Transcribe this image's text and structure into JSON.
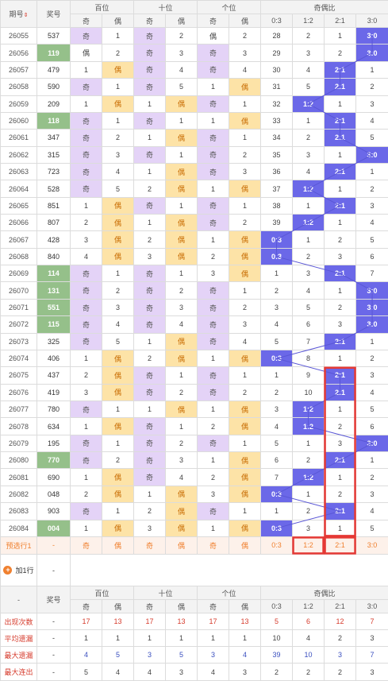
{
  "header": {
    "period": "期号",
    "prize": "奖号",
    "bai": "百位",
    "shi": "十位",
    "ge": "个位",
    "ratio": "奇偶比",
    "qi": "奇",
    "ou": "偶",
    "sort_icon": "sort-arrows-icon",
    "ratios": [
      "0:3",
      "1:2",
      "2:1",
      "3:0"
    ]
  },
  "rows": [
    {
      "p": "26055",
      "n": "537",
      "g": false,
      "b": "奇",
      "bm": "1",
      "s": "奇",
      "sm": "2",
      "e": "偶",
      "em": "2",
      "ratio": "3:0",
      "miss": [
        28,
        2,
        1
      ]
    },
    {
      "p": "26056",
      "n": "119",
      "g": true,
      "b": "偶",
      "bm": "2",
      "s": "奇",
      "sm": "3",
      "e": "奇",
      "em": "3",
      "ratio": "3:0",
      "miss": [
        29,
        3,
        2
      ]
    },
    {
      "p": "26057",
      "n": "479",
      "g": false,
      "b": "1",
      "bm": "偶",
      "s": "奇",
      "sm": "4",
      "e": "奇",
      "em": "4",
      "ratio": "2:1",
      "miss": [
        30,
        4,
        null,
        1
      ]
    },
    {
      "p": "26058",
      "n": "590",
      "g": false,
      "b": "奇",
      "bm": "1",
      "s": "奇",
      "sm": "5",
      "e": "1",
      "em": "偶",
      "ratio": "2:1",
      "miss": [
        31,
        5,
        null,
        2
      ]
    },
    {
      "p": "26059",
      "n": "209",
      "g": false,
      "b": "1",
      "bm": "偶",
      "s": "1",
      "sm": "偶",
      "e": "奇",
      "em": "1",
      "ratio": "1:2",
      "miss": [
        32,
        null,
        1,
        3
      ]
    },
    {
      "p": "26060",
      "n": "118",
      "g": true,
      "b": "奇",
      "bm": "1",
      "s": "奇",
      "sm": "1",
      "e": "1",
      "em": "偶",
      "ratio": "2:1",
      "miss": [
        33,
        1,
        null,
        4
      ]
    },
    {
      "p": "26061",
      "n": "347",
      "g": false,
      "b": "奇",
      "bm": "2",
      "s": "1",
      "sm": "偶",
      "e": "奇",
      "em": "1",
      "ratio": "2:1",
      "miss": [
        34,
        2,
        null,
        5
      ]
    },
    {
      "p": "26062",
      "n": "315",
      "g": false,
      "b": "奇",
      "bm": "3",
      "s": "奇",
      "sm": "1",
      "e": "奇",
      "em": "2",
      "ratio": "3:0",
      "miss": [
        35,
        3,
        1
      ]
    },
    {
      "p": "26063",
      "n": "723",
      "g": false,
      "b": "奇",
      "bm": "4",
      "s": "1",
      "sm": "偶",
      "e": "奇",
      "em": "3",
      "ratio": "2:1",
      "miss": [
        36,
        4,
        null,
        1
      ]
    },
    {
      "p": "26064",
      "n": "528",
      "g": false,
      "b": "奇",
      "bm": "5",
      "s": "2",
      "sm": "偶",
      "e": "1",
      "em": "偶",
      "ratio": "1:2",
      "miss": [
        37,
        null,
        1,
        2
      ]
    },
    {
      "p": "26065",
      "n": "851",
      "g": false,
      "b": "1",
      "bm": "偶",
      "s": "奇",
      "sm": "1",
      "e": "奇",
      "em": "1",
      "ratio": "2:1",
      "miss": [
        38,
        1,
        null,
        3
      ]
    },
    {
      "p": "26066",
      "n": "807",
      "g": false,
      "b": "2",
      "bm": "偶",
      "s": "1",
      "sm": "偶",
      "e": "奇",
      "em": "2",
      "ratio": "1:2",
      "miss": [
        39,
        null,
        1,
        4
      ]
    },
    {
      "p": "26067",
      "n": "428",
      "g": false,
      "b": "3",
      "bm": "偶",
      "s": "2",
      "sm": "偶",
      "e": "1",
      "em": "偶",
      "ratio": "0:3",
      "miss": [
        null,
        1,
        2,
        5
      ]
    },
    {
      "p": "26068",
      "n": "840",
      "g": false,
      "b": "4",
      "bm": "偶",
      "s": "3",
      "sm": "偶",
      "e": "2",
      "em": "偶",
      "ratio": "0:3",
      "miss": [
        null,
        2,
        3,
        6
      ]
    },
    {
      "p": "26069",
      "n": "114",
      "g": true,
      "b": "奇",
      "bm": "1",
      "s": "奇",
      "sm": "1",
      "e": "3",
      "em": "偶",
      "ratio": "2:1",
      "miss": [
        1,
        3,
        null,
        7
      ]
    },
    {
      "p": "26070",
      "n": "131",
      "g": true,
      "b": "奇",
      "bm": "2",
      "s": "奇",
      "sm": "2",
      "e": "奇",
      "em": "1",
      "ratio": "3:0",
      "miss": [
        2,
        4,
        1
      ]
    },
    {
      "p": "26071",
      "n": "551",
      "g": true,
      "b": "奇",
      "bm": "3",
      "s": "奇",
      "sm": "3",
      "e": "奇",
      "em": "2",
      "ratio": "3:0",
      "miss": [
        3,
        5,
        2
      ]
    },
    {
      "p": "26072",
      "n": "115",
      "g": true,
      "b": "奇",
      "bm": "4",
      "s": "奇",
      "sm": "4",
      "e": "奇",
      "em": "3",
      "ratio": "3:0",
      "miss": [
        4,
        6,
        3
      ]
    },
    {
      "p": "26073",
      "n": "325",
      "g": false,
      "b": "奇",
      "bm": "5",
      "s": "1",
      "sm": "偶",
      "e": "奇",
      "em": "4",
      "ratio": "2:1",
      "miss": [
        5,
        7,
        null,
        1
      ]
    },
    {
      "p": "26074",
      "n": "406",
      "g": false,
      "b": "1",
      "bm": "偶",
      "s": "2",
      "sm": "偶",
      "e": "1",
      "em": "偶",
      "ratio": "0:3",
      "miss": [
        null,
        8,
        1,
        2
      ]
    },
    {
      "p": "26075",
      "n": "437",
      "g": false,
      "b": "2",
      "bm": "偶",
      "s": "奇",
      "sm": "1",
      "e": "奇",
      "em": "1",
      "ratio": "2:1",
      "miss": [
        1,
        9,
        null,
        3
      ]
    },
    {
      "p": "26076",
      "n": "419",
      "g": false,
      "b": "3",
      "bm": "偶",
      "s": "奇",
      "sm": "2",
      "e": "奇",
      "em": "2",
      "ratio": "2:1",
      "miss": [
        2,
        10,
        null,
        4
      ]
    },
    {
      "p": "26077",
      "n": "780",
      "g": false,
      "b": "奇",
      "bm": "1",
      "s": "1",
      "sm": "偶",
      "e": "1",
      "em": "偶",
      "ratio": "1:2",
      "miss": [
        3,
        null,
        1,
        5
      ]
    },
    {
      "p": "26078",
      "n": "634",
      "g": false,
      "b": "1",
      "bm": "偶",
      "s": "奇",
      "sm": "1",
      "e": "2",
      "em": "偶",
      "ratio": "1:2",
      "miss": [
        4,
        null,
        2,
        6
      ]
    },
    {
      "p": "26079",
      "n": "195",
      "g": false,
      "b": "奇",
      "bm": "1",
      "s": "奇",
      "sm": "2",
      "e": "奇",
      "em": "1",
      "ratio": "3:0",
      "miss": [
        5,
        1,
        3
      ]
    },
    {
      "p": "26080",
      "n": "770",
      "g": true,
      "b": "奇",
      "bm": "2",
      "s": "奇",
      "sm": "3",
      "e": "1",
      "em": "偶",
      "ratio": "2:1",
      "miss": [
        6,
        2,
        null,
        1
      ]
    },
    {
      "p": "26081",
      "n": "690",
      "g": false,
      "b": "1",
      "bm": "偶",
      "s": "奇",
      "sm": "4",
      "e": "2",
      "em": "偶",
      "ratio": "1:2",
      "miss": [
        7,
        null,
        1,
        2
      ]
    },
    {
      "p": "26082",
      "n": "048",
      "g": false,
      "b": "2",
      "bm": "偶",
      "s": "1",
      "sm": "偶",
      "e": "3",
      "em": "偶",
      "ratio": "0:3",
      "miss": [
        null,
        1,
        2,
        3
      ]
    },
    {
      "p": "26083",
      "n": "903",
      "g": false,
      "b": "奇",
      "bm": "1",
      "s": "2",
      "sm": "偶",
      "e": "奇",
      "em": "1",
      "ratio": "2:1",
      "miss": [
        1,
        2,
        null,
        4
      ]
    },
    {
      "p": "26084",
      "n": "004",
      "g": true,
      "b": "1",
      "bm": "偶",
      "s": "3",
      "sm": "偶",
      "e": "1",
      "em": "偶",
      "ratio": "0:3",
      "miss": [
        null,
        3,
        1,
        5
      ]
    }
  ],
  "pred": {
    "label": "预选行1",
    "dash": "-",
    "cells": [
      "奇",
      "偶",
      "奇",
      "偶",
      "奇",
      "偶",
      "0:3",
      "1:2",
      "2:1",
      "3:0"
    ]
  },
  "add_row": {
    "label": "加1行",
    "dash": "-",
    "icon": "plus-circle-icon"
  },
  "footer_header": {
    "dash": "-",
    "prize": "奖号"
  },
  "stats": [
    {
      "label": "出现次数",
      "dash": "-",
      "color": "red",
      "vals": [
        "17",
        "13",
        "17",
        "13",
        "17",
        "13",
        "5",
        "6",
        "12",
        "7"
      ]
    },
    {
      "label": "平均遗漏",
      "dash": "-",
      "color": "dark",
      "vals": [
        "1",
        "1",
        "1",
        "1",
        "1",
        "1",
        "10",
        "4",
        "2",
        "3"
      ]
    },
    {
      "label": "最大遗漏",
      "dash": "-",
      "color": "blue",
      "vals": [
        "4",
        "5",
        "3",
        "5",
        "3",
        "4",
        "39",
        "10",
        "3",
        "7"
      ]
    },
    {
      "label": "最大连出",
      "dash": "-",
      "color": "dark",
      "vals": [
        "5",
        "4",
        "4",
        "3",
        "4",
        "3",
        "2",
        "2",
        "2",
        "3"
      ]
    }
  ],
  "colors": {
    "qi": "#e4d3f7",
    "ou": "#fde3a7",
    "green": "#95c08a",
    "blue": "#6b68e8",
    "highlight": "#e53935",
    "line": "#5a57d6"
  }
}
